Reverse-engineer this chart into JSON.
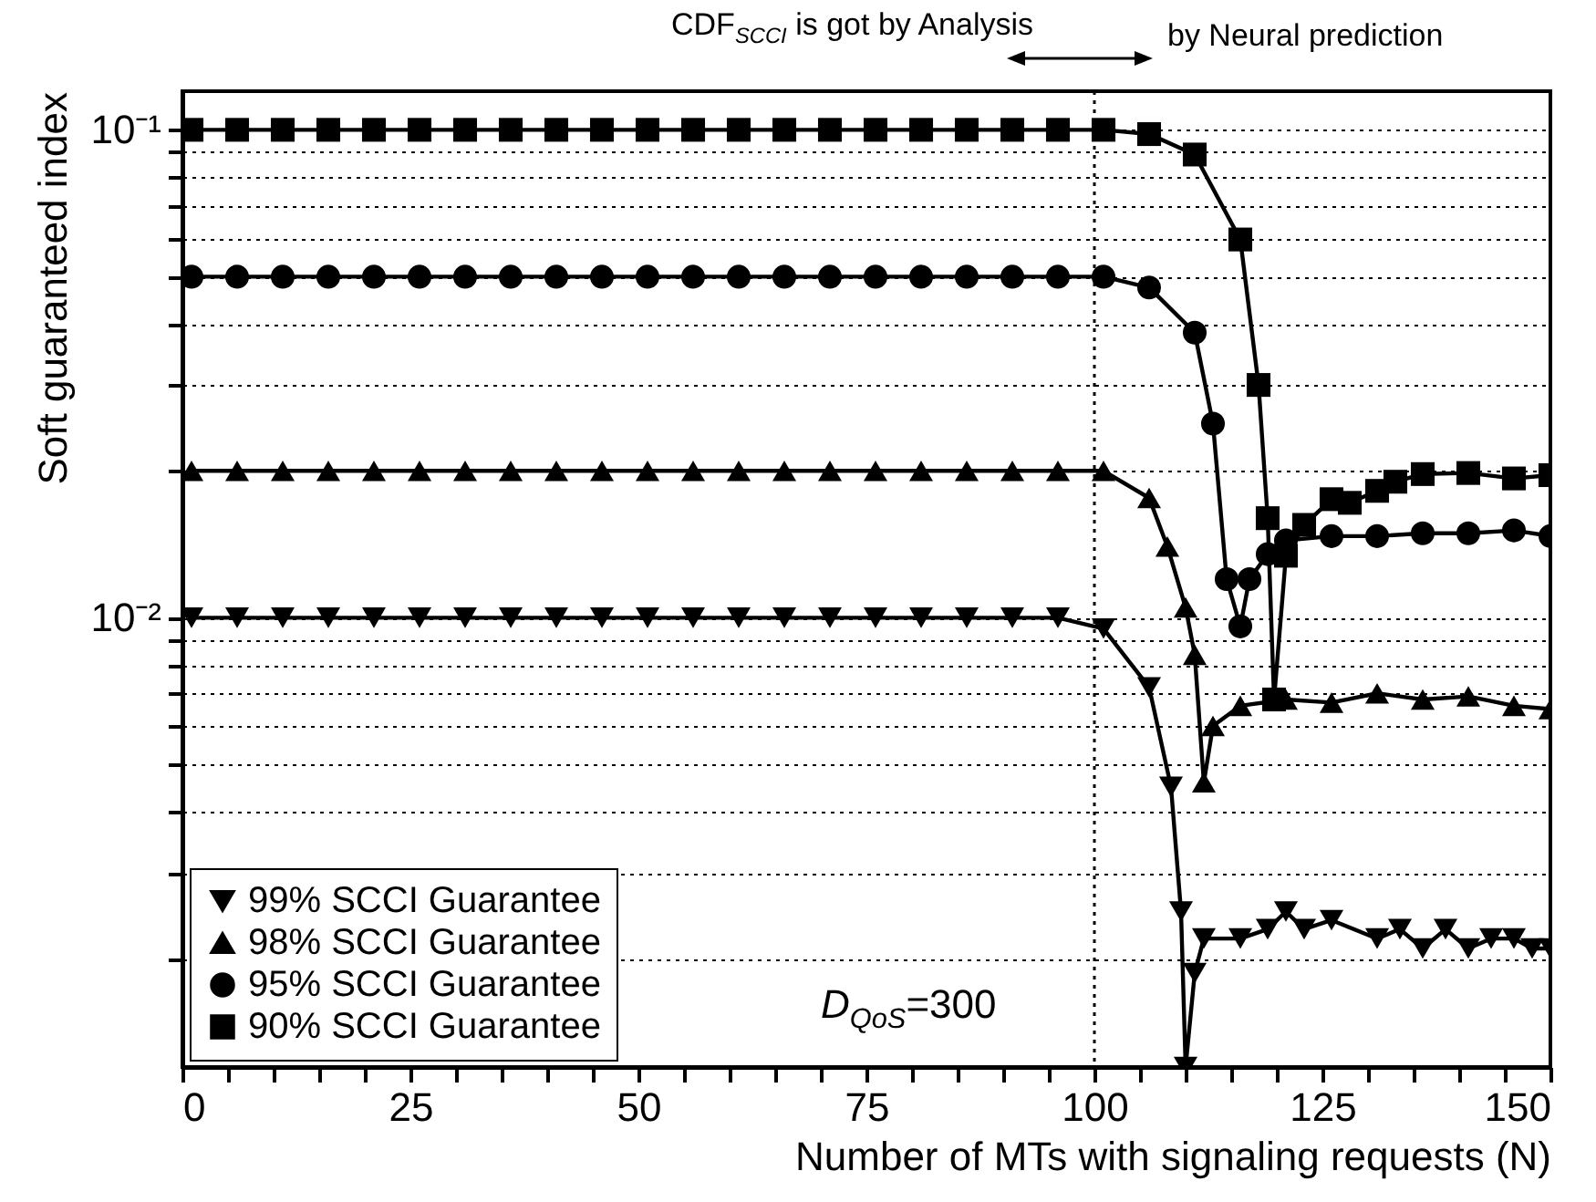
{
  "chart_data": {
    "type": "line",
    "xlabel": "Number of MTs with signaling requests (N)",
    "ylabel": "Soft guaranteed index",
    "annotations": [
      "CDF$_{SCCI}$ is got by Analysis",
      "by Neural prediction",
      "D$_{QoS}$=300"
    ],
    "log": "y",
    "grid": "y",
    "legend": "bottom left",
    "xlim": [
      0,
      150
    ],
    "xticks": [
      0,
      {
        "value": 5,
        "label": null
      },
      {
        "value": 10,
        "label": null
      },
      {
        "value": 15,
        "label": null
      },
      {
        "value": 20,
        "label": null
      },
      25,
      {
        "value": 30,
        "label": null
      },
      {
        "value": 35,
        "label": null
      },
      {
        "value": 40,
        "label": null
      },
      {
        "value": 45,
        "label": null
      },
      50,
      {
        "value": 55,
        "label": null
      },
      {
        "value": 60,
        "label": null
      },
      {
        "value": 65,
        "label": null
      },
      {
        "value": 70,
        "label": null
      },
      75,
      {
        "value": 80,
        "label": null
      },
      {
        "value": 85,
        "label": null
      },
      {
        "value": 90,
        "label": null
      },
      {
        "value": 95,
        "label": null
      },
      100,
      {
        "value": 105,
        "label": null
      },
      {
        "value": 110,
        "label": null
      },
      {
        "value": 115,
        "label": null
      },
      {
        "value": 120,
        "label": null
      },
      125,
      {
        "value": 130,
        "label": null
      },
      {
        "value": 135,
        "label": null
      },
      {
        "value": 140,
        "label": null
      },
      {
        "value": 145,
        "label": null
      },
      150
    ],
    "ylim": [
      0.0012,
      0.12
    ],
    "yticks": [
      {
        "value": 0.002,
        "label": null
      },
      {
        "value": 0.003,
        "label": null
      },
      {
        "value": 0.004,
        "label": null
      },
      {
        "value": 0.005,
        "label": null
      },
      {
        "value": 0.006,
        "label": null
      },
      {
        "value": 0.007,
        "label": null
      },
      {
        "value": 0.008,
        "label": null
      },
      {
        "value": 0.009,
        "label": null
      },
      {
        "value": 0.01,
        "label": "10⁻²"
      },
      {
        "value": 0.02,
        "label": null
      },
      {
        "value": 0.03,
        "label": null
      },
      {
        "value": 0.04,
        "label": null
      },
      {
        "value": 0.05,
        "label": null
      },
      {
        "value": 0.06,
        "label": null
      },
      {
        "value": 0.07,
        "label": null
      },
      {
        "value": 0.08,
        "label": null
      },
      {
        "value": 0.09,
        "label": null
      },
      {
        "value": 0.1,
        "label": "10⁻¹"
      }
    ],
    "ref_lines": [
      {
        "axis": "x",
        "value": 100,
        "color": "#000000",
        "line_style": "dotted"
      }
    ],
    "series": [
      {
        "name": "99% SCCI Guarantee",
        "color": "#000000",
        "marker": "triangle-down",
        "x": [
          1,
          6,
          11,
          16,
          21,
          26,
          31,
          36,
          41,
          46,
          51,
          56,
          61,
          66,
          71,
          76,
          81,
          86,
          91,
          96,
          101,
          106,
          108.4,
          109.5,
          110,
          111,
          112,
          116,
          119,
          121,
          123,
          126,
          131,
          133.5,
          136,
          138.5,
          141,
          143.5,
          146,
          148,
          150
        ],
        "values": [
          0.01,
          0.01,
          0.01,
          0.01,
          0.01,
          0.01,
          0.01,
          0.01,
          0.01,
          0.01,
          0.01,
          0.01,
          0.01,
          0.01,
          0.01,
          0.01,
          0.01,
          0.01,
          0.01,
          0.01,
          0.0095,
          0.0072,
          0.0045,
          0.0025,
          0.0012,
          0.00187,
          0.0022,
          0.0022,
          0.0023,
          0.0025,
          0.0023,
          0.0024,
          0.0022,
          0.0023,
          0.0021,
          0.0023,
          0.0021,
          0.0022,
          0.0022,
          0.0021,
          0.0021
        ]
      },
      {
        "name": "98% SCCI Guarantee",
        "color": "#000000",
        "marker": "triangle",
        "x": [
          1,
          6,
          11,
          16,
          21,
          26,
          31,
          36,
          41,
          46,
          51,
          56,
          61,
          66,
          71,
          76,
          81,
          86,
          91,
          96,
          101,
          106,
          108,
          110,
          111,
          112,
          113,
          116,
          121,
          126,
          131,
          136,
          141,
          146,
          150
        ],
        "values": [
          0.02,
          0.02,
          0.02,
          0.02,
          0.02,
          0.02,
          0.02,
          0.02,
          0.02,
          0.02,
          0.02,
          0.02,
          0.02,
          0.02,
          0.02,
          0.02,
          0.02,
          0.02,
          0.02,
          0.02,
          0.02,
          0.0176,
          0.014,
          0.0105,
          0.0084,
          0.0046,
          0.006,
          0.0066,
          0.0068,
          0.0067,
          0.007,
          0.0068,
          0.0069,
          0.0066,
          0.0065
        ]
      },
      {
        "name": "95% SCCI Guarantee",
        "color": "#000000",
        "marker": "circle",
        "x": [
          1,
          6,
          11,
          16,
          21,
          26,
          31,
          36,
          41,
          46,
          51,
          56,
          61,
          66,
          71,
          76,
          81,
          86,
          91,
          96,
          101,
          106,
          111,
          113,
          114.5,
          116,
          117,
          119,
          121,
          126,
          131,
          136,
          141,
          146,
          150
        ],
        "values": [
          0.05,
          0.05,
          0.05,
          0.05,
          0.05,
          0.05,
          0.05,
          0.05,
          0.05,
          0.05,
          0.05,
          0.05,
          0.05,
          0.05,
          0.05,
          0.05,
          0.05,
          0.05,
          0.05,
          0.05,
          0.05,
          0.0475,
          0.0384,
          0.025,
          0.012,
          0.0096,
          0.012,
          0.0135,
          0.0144,
          0.0147,
          0.0147,
          0.0149,
          0.0149,
          0.0151,
          0.0147
        ]
      },
      {
        "name": "90% SCCI Guarantee",
        "color": "#000000",
        "marker": "square",
        "x": [
          1,
          6,
          11,
          16,
          21,
          26,
          31,
          36,
          41,
          46,
          51,
          56,
          61,
          66,
          71,
          76,
          81,
          86,
          91,
          96,
          101,
          106,
          111,
          116,
          118,
          119,
          119.7,
          121,
          123,
          126,
          128,
          131,
          133,
          136,
          141,
          146,
          150
        ],
        "values": [
          0.1,
          0.1,
          0.1,
          0.1,
          0.1,
          0.1,
          0.1,
          0.1,
          0.1,
          0.1,
          0.1,
          0.1,
          0.1,
          0.1,
          0.1,
          0.1,
          0.1,
          0.1,
          0.1,
          0.1,
          0.1,
          0.098,
          0.089,
          0.0596,
          0.03,
          0.016,
          0.0068,
          0.0134,
          0.0155,
          0.0175,
          0.0172,
          0.0182,
          0.019,
          0.0197,
          0.0198,
          0.0193,
          0.0196
        ]
      }
    ]
  }
}
